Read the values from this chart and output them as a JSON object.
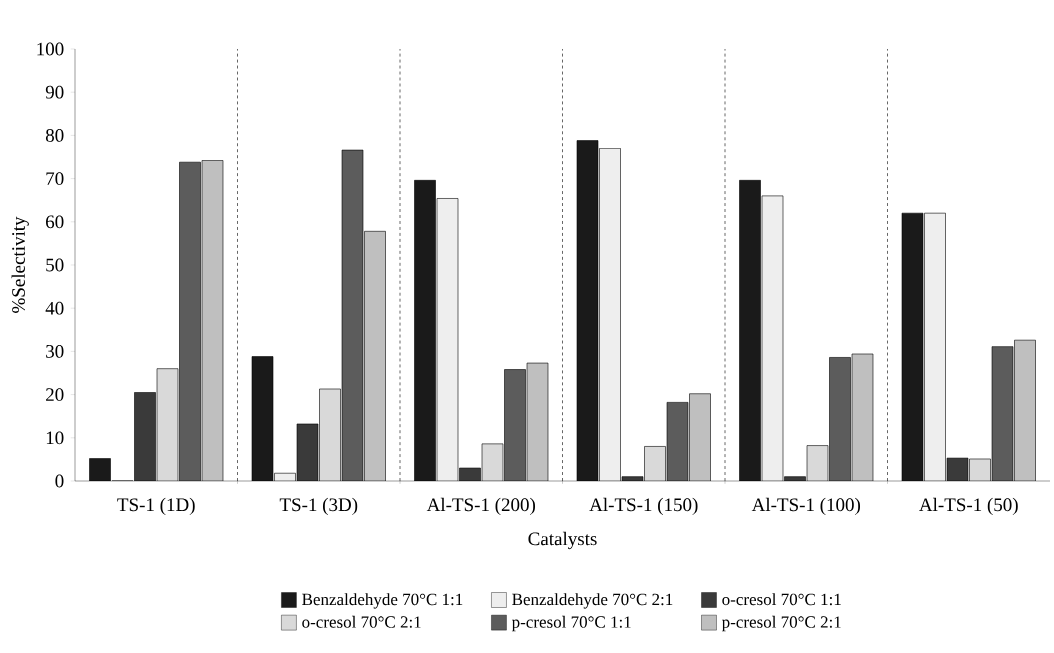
{
  "chart_data": {
    "type": "bar",
    "xlabel": "Catalysts",
    "ylabel": "%Selectivity",
    "categories": [
      "TS-1 (1D)",
      "TS-1 (3D)",
      "Al-TS-1 (200)",
      "Al-TS-1 (150)",
      "Al-TS-1 (100)",
      "Al-TS-1 (50)"
    ],
    "series": [
      {
        "name": "Benzaldehyde 70°C 1:1",
        "color": "#1a1a1a",
        "values": [
          5.2,
          28.8,
          69.6,
          78.8,
          69.6,
          62.0
        ]
      },
      {
        "name": "Benzaldehyde 70°C 2:1",
        "color": "#eeeeee",
        "values": [
          0,
          1.8,
          65.4,
          77.0,
          66.0,
          62.0
        ]
      },
      {
        "name": "o-cresol 70°C 1:1",
        "color": "#3a3a3a",
        "values": [
          20.5,
          13.2,
          3.0,
          1.0,
          1.0,
          5.3
        ]
      },
      {
        "name": "o-cresol 70°C 2:1",
        "color": "#d9d9d9",
        "values": [
          26.0,
          21.3,
          8.6,
          8.0,
          8.2,
          5.1
        ]
      },
      {
        "name": "p-cresol 70°C 1:1",
        "color": "#5c5c5c",
        "values": [
          73.8,
          76.6,
          25.8,
          18.2,
          28.6,
          31.1
        ]
      },
      {
        "name": "p-cresol 70°C 2:1",
        "color": "#bfbfbf",
        "values": [
          74.2,
          57.8,
          27.3,
          20.2,
          29.4,
          32.6
        ]
      }
    ],
    "ylim": [
      0,
      100
    ],
    "yticks": [
      0,
      10,
      20,
      30,
      40,
      50,
      60,
      70,
      80,
      90,
      100
    ],
    "grid": "x",
    "legend": "bottom"
  }
}
